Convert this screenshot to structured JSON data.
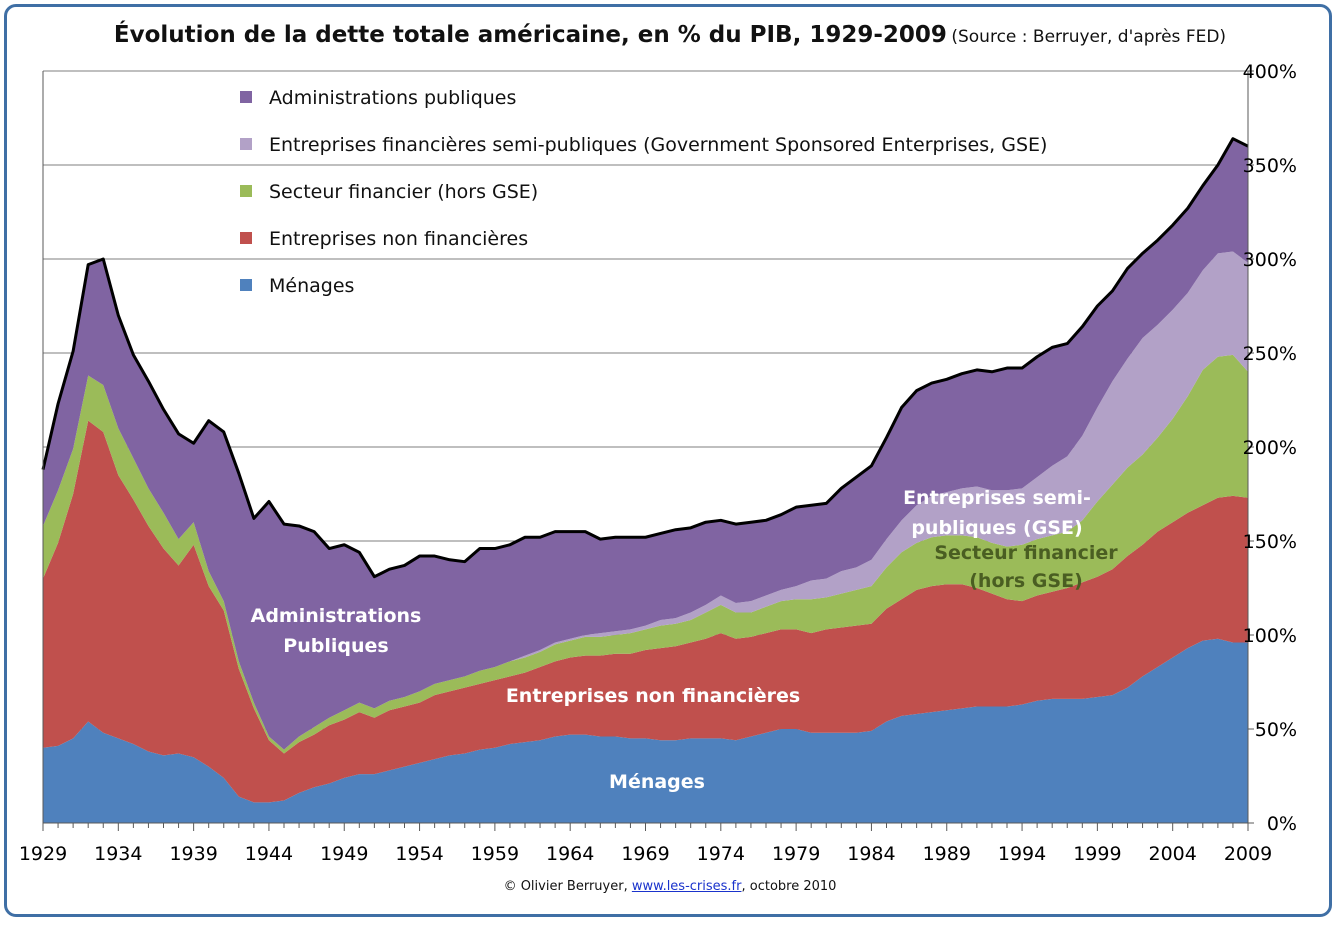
{
  "chart_title": "Évolution de la dette totale américaine, en % du PIB, 1929-2009",
  "chart_source": "(Source : Berruyer,  d'après FED)",
  "credit": {
    "prefix": "© Olivier Berruyer, ",
    "link": "www.les-crises.fr",
    "suffix": ", octobre 2010"
  },
  "colors": {
    "menages": "#4f81bd",
    "entreprises_non_fin": "#c0504d",
    "secteur_fin": "#9bbb59",
    "gse": "#b2a1c7",
    "admin": "#8064a2",
    "total_line": "#000000"
  },
  "chart_data": {
    "type": "area",
    "stacked": true,
    "x": [
      1929,
      1930,
      1931,
      1932,
      1933,
      1934,
      1935,
      1936,
      1937,
      1938,
      1939,
      1940,
      1941,
      1942,
      1943,
      1944,
      1945,
      1946,
      1947,
      1948,
      1949,
      1950,
      1951,
      1952,
      1953,
      1954,
      1955,
      1956,
      1957,
      1958,
      1959,
      1960,
      1961,
      1962,
      1963,
      1964,
      1965,
      1966,
      1967,
      1968,
      1969,
      1970,
      1971,
      1972,
      1973,
      1974,
      1975,
      1976,
      1977,
      1978,
      1979,
      1980,
      1981,
      1982,
      1983,
      1984,
      1985,
      1986,
      1987,
      1988,
      1989,
      1990,
      1991,
      1992,
      1993,
      1994,
      1995,
      1996,
      1997,
      1998,
      1999,
      2000,
      2001,
      2002,
      2003,
      2004,
      2005,
      2006,
      2007,
      2008,
      2009
    ],
    "xticks": [
      "1929",
      "1934",
      "1939",
      "1944",
      "1949",
      "1954",
      "1959",
      "1964",
      "1969",
      "1974",
      "1979",
      "1984",
      "1989",
      "1994",
      "1999",
      "2004",
      "2009"
    ],
    "yticks": [
      "0%",
      "50%",
      "100%",
      "150%",
      "200%",
      "250%",
      "300%",
      "350%",
      "400%"
    ],
    "ylim": [
      0,
      400
    ],
    "grid": "horizontal",
    "legend_position": "top-left",
    "series": [
      {
        "name": "Ménages",
        "color_key": "menages",
        "values": [
          40,
          41,
          45,
          54,
          48,
          45,
          42,
          38,
          36,
          37,
          35,
          30,
          24,
          14,
          11,
          11,
          12,
          16,
          19,
          21,
          24,
          26,
          26,
          28,
          30,
          32,
          34,
          36,
          37,
          39,
          40,
          42,
          43,
          44,
          46,
          47,
          47,
          46,
          46,
          45,
          45,
          44,
          44,
          45,
          45,
          45,
          44,
          46,
          48,
          50,
          50,
          48,
          48,
          48,
          48,
          49,
          54,
          57,
          58,
          59,
          60,
          61,
          62,
          62,
          62,
          63,
          65,
          66,
          66,
          66,
          67,
          68,
          72,
          78,
          83,
          88,
          93,
          97,
          98,
          96,
          96
        ]
      },
      {
        "name": "Entreprises non financières",
        "color_key": "entreprises_non_fin",
        "values": [
          90,
          108,
          130,
          160,
          160,
          140,
          130,
          120,
          110,
          100,
          113,
          96,
          89,
          68,
          50,
          33,
          25,
          27,
          28,
          31,
          31,
          33,
          30,
          32,
          32,
          32,
          34,
          34,
          35,
          35,
          36,
          36,
          37,
          39,
          40,
          41,
          42,
          43,
          44,
          45,
          47,
          49,
          50,
          51,
          53,
          56,
          54,
          53,
          53,
          53,
          53,
          53,
          55,
          56,
          57,
          57,
          60,
          62,
          66,
          67,
          67,
          66,
          63,
          60,
          57,
          55,
          56,
          57,
          59,
          62,
          64,
          67,
          70,
          70,
          72,
          72,
          72,
          72,
          75,
          78,
          77
        ]
      },
      {
        "name": "Secteur financier (hors GSE)",
        "color_key": "secteur_fin",
        "values": [
          28,
          28,
          24,
          24,
          25,
          25,
          22,
          20,
          19,
          14,
          12,
          8,
          5,
          4,
          3,
          2,
          2,
          3,
          4,
          4,
          5,
          5,
          5,
          5,
          5,
          6,
          6,
          6,
          6,
          7,
          7,
          8,
          8,
          8,
          9,
          9,
          10,
          10,
          10,
          11,
          11,
          12,
          12,
          12,
          14,
          15,
          14,
          13,
          14,
          15,
          16,
          18,
          17,
          18,
          19,
          20,
          22,
          25,
          25,
          26,
          26,
          26,
          27,
          27,
          28,
          30,
          30,
          30,
          30,
          33,
          40,
          45,
          47,
          48,
          50,
          55,
          62,
          72,
          75,
          75,
          67
        ]
      },
      {
        "name": "Entreprises financières semi-publiques (Government Sponsored Enterprises, GSE)",
        "color_key": "gse",
        "values": [
          0,
          0,
          0,
          0,
          0,
          0,
          0,
          0,
          0,
          0,
          0,
          0,
          0,
          0,
          0,
          0,
          0,
          0,
          0,
          0,
          0,
          0,
          0,
          0,
          0,
          0,
          0,
          0,
          0,
          0,
          0,
          0,
          1,
          1,
          1,
          1,
          1,
          2,
          2,
          2,
          2,
          3,
          3,
          4,
          4,
          5,
          5,
          6,
          6,
          6,
          7,
          10,
          10,
          12,
          12,
          14,
          15,
          17,
          20,
          22,
          23,
          25,
          27,
          28,
          30,
          30,
          33,
          37,
          40,
          45,
          50,
          55,
          58,
          62,
          60,
          58,
          55,
          53,
          55,
          55,
          58
        ]
      },
      {
        "name": "Administrations publiques",
        "color_key": "admin",
        "values": [
          30,
          46,
          52,
          59,
          67,
          60,
          55,
          57,
          55,
          56,
          42,
          80,
          90,
          100,
          98,
          125,
          120,
          112,
          104,
          90,
          88,
          80,
          70,
          70,
          70,
          72,
          68,
          64,
          61,
          65,
          63,
          62,
          63,
          60,
          59,
          57,
          55,
          50,
          50,
          49,
          47,
          46,
          47,
          45,
          44,
          40,
          42,
          42,
          40,
          40,
          42,
          40,
          40,
          44,
          48,
          50,
          54,
          60,
          61,
          60,
          60,
          61,
          62,
          63,
          65,
          64,
          64,
          63,
          60,
          58,
          54,
          48,
          48,
          45,
          45,
          45,
          45,
          45,
          47,
          60,
          62
        ]
      }
    ],
    "total_line": {
      "name": "Total",
      "values": [
        189,
        223,
        251,
        297,
        300,
        270,
        249,
        235,
        220,
        207,
        202,
        214,
        208,
        186,
        162,
        171,
        159,
        158,
        155,
        146,
        148,
        144,
        131,
        135,
        137,
        142,
        142,
        140,
        139,
        146,
        146,
        148,
        152,
        152,
        155,
        155,
        155,
        151,
        152,
        152,
        152,
        154,
        156,
        157,
        160,
        161,
        159,
        160,
        161,
        164,
        168,
        169,
        170,
        178,
        184,
        190,
        205,
        221,
        230,
        234,
        236,
        239,
        241,
        240,
        242,
        242,
        248,
        253,
        255,
        264,
        271,
        283,
        295,
        303,
        310,
        318,
        327,
        339,
        355,
        364,
        370
      ]
    },
    "annotations": [
      {
        "text": "Administrations",
        "key": "admin"
      },
      {
        "text": "Publiques",
        "key": "admin"
      },
      {
        "text": "Entreprises semi-",
        "key": "gse"
      },
      {
        "text": "publiques (GSE)",
        "key": "gse"
      },
      {
        "text": "Secteur financier",
        "key": "secteur_fin"
      },
      {
        "text": "(hors GSE)",
        "key": "secteur_fin"
      },
      {
        "text": "Entreprises non financières",
        "key": "entreprises_non_fin"
      },
      {
        "text": "Ménages",
        "key": "menages"
      }
    ]
  }
}
